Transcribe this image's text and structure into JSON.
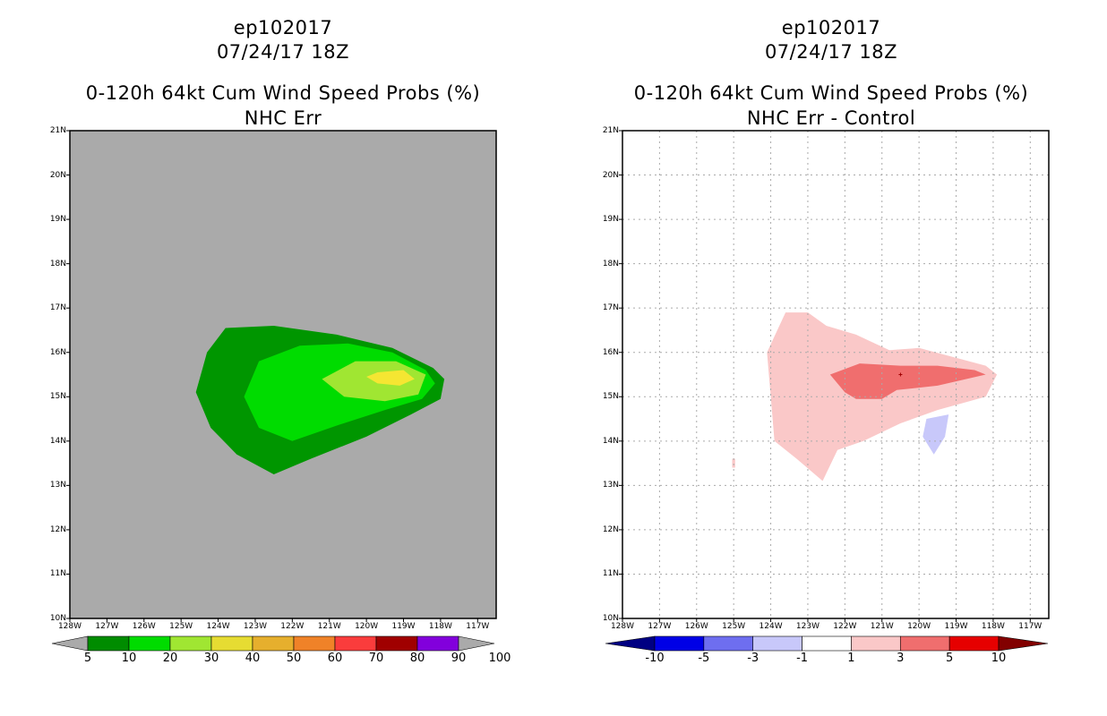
{
  "chart_data": [
    {
      "type": "filled-contour-map",
      "storm_id": "ep102017",
      "datetime": "07/24/17 18Z",
      "title": "0-120h 64kt Cum Wind Speed Probs (%)",
      "subtitle": "NHC Err",
      "lat_labels": [
        "21N",
        "20N",
        "19N",
        "18N",
        "17N",
        "16N",
        "15N",
        "14N",
        "13N",
        "12N",
        "11N",
        "10N"
      ],
      "lon_labels": [
        "128W",
        "127W",
        "126W",
        "125W",
        "124W",
        "123W",
        "122W",
        "121W",
        "120W",
        "119W",
        "118W",
        "117W"
      ],
      "xlim": [
        -128,
        -116.5
      ],
      "ylim": [
        10,
        21
      ],
      "background": "#aaaaaa",
      "colorbar": {
        "levels": [
          "5",
          "10",
          "20",
          "30",
          "40",
          "50",
          "60",
          "70",
          "80",
          "90",
          "100"
        ],
        "colors": [
          "#008c00",
          "#00dc00",
          "#a0e632",
          "#e6dc32",
          "#e6af2d",
          "#f08228",
          "#fa3c3c",
          "#a00000",
          "#8200dc"
        ],
        "end_color": "#aaaaaa"
      },
      "contours": [
        {
          "level": "5-10",
          "color": "#009600",
          "points": [
            [
              -124.3,
              16.0
            ],
            [
              -123.8,
              16.55
            ],
            [
              -122.5,
              16.6
            ],
            [
              -120.8,
              16.4
            ],
            [
              -119.3,
              16.1
            ],
            [
              -118.2,
              15.65
            ],
            [
              -117.9,
              15.4
            ],
            [
              -118.0,
              14.95
            ],
            [
              -118.8,
              14.6
            ],
            [
              -120.0,
              14.1
            ],
            [
              -121.5,
              13.6
            ],
            [
              -122.5,
              13.25
            ],
            [
              -123.5,
              13.7
            ],
            [
              -124.2,
              14.3
            ],
            [
              -124.6,
              15.1
            ],
            [
              -124.4,
              15.7
            ]
          ]
        },
        {
          "level": "10-20",
          "color": "#00dc00",
          "points": [
            [
              -122.9,
              15.8
            ],
            [
              -121.8,
              16.15
            ],
            [
              -120.5,
              16.2
            ],
            [
              -119.3,
              16.0
            ],
            [
              -118.4,
              15.6
            ],
            [
              -118.15,
              15.3
            ],
            [
              -118.5,
              14.95
            ],
            [
              -119.5,
              14.7
            ],
            [
              -120.8,
              14.35
            ],
            [
              -122.0,
              14.0
            ],
            [
              -122.9,
              14.3
            ],
            [
              -123.3,
              15.0
            ]
          ]
        },
        {
          "level": "20-30",
          "color": "#a0e632",
          "points": [
            [
              -121.2,
              15.4
            ],
            [
              -120.3,
              15.8
            ],
            [
              -119.2,
              15.8
            ],
            [
              -118.4,
              15.5
            ],
            [
              -118.6,
              15.05
            ],
            [
              -119.5,
              14.9
            ],
            [
              -120.6,
              15.0
            ]
          ]
        },
        {
          "level": "30-40",
          "color": "#f5e632",
          "points": [
            [
              -119.7,
              15.55
            ],
            [
              -119.0,
              15.6
            ],
            [
              -118.7,
              15.4
            ],
            [
              -119.1,
              15.25
            ],
            [
              -119.7,
              15.3
            ],
            [
              -120.0,
              15.45
            ]
          ]
        }
      ]
    },
    {
      "type": "filled-contour-map",
      "storm_id": "ep102017",
      "datetime": "07/24/17 18Z",
      "title": "0-120h 64kt Cum Wind Speed Probs (%)",
      "subtitle": "NHC Err - Control",
      "lat_labels": [
        "21N",
        "20N",
        "19N",
        "18N",
        "17N",
        "16N",
        "15N",
        "14N",
        "13N",
        "12N",
        "11N",
        "10N"
      ],
      "lon_labels": [
        "128W",
        "127W",
        "126W",
        "125W",
        "124W",
        "123W",
        "122W",
        "121W",
        "120W",
        "119W",
        "118W",
        "117W"
      ],
      "xlim": [
        -128,
        -116.5
      ],
      "ylim": [
        10,
        21
      ],
      "background": "#ffffff",
      "grid": true,
      "colorbar": {
        "levels": [
          "-10",
          "-5",
          "-3",
          "-1",
          "1",
          "3",
          "5",
          "10"
        ],
        "colors": [
          "#0000e6",
          "#6e6ef0",
          "#c8c8fa",
          "#ffffff",
          "#fac8c8",
          "#f06e6e",
          "#e60000"
        ],
        "start_color": "#000082",
        "end_color": "#820000"
      },
      "contours": [
        {
          "level": "1-3",
          "color": "#fac8c8",
          "points": [
            [
              -124.1,
              16.0
            ],
            [
              -123.6,
              16.9
            ],
            [
              -123.0,
              16.9
            ],
            [
              -122.5,
              16.6
            ],
            [
              -121.7,
              16.4
            ],
            [
              -120.8,
              16.05
            ],
            [
              -120.0,
              16.1
            ],
            [
              -118.2,
              15.7
            ],
            [
              -117.9,
              15.5
            ],
            [
              -118.2,
              15.0
            ],
            [
              -119.5,
              14.7
            ],
            [
              -120.5,
              14.4
            ],
            [
              -121.5,
              14.0
            ],
            [
              -122.2,
              13.8
            ],
            [
              -122.6,
              13.1
            ],
            [
              -123.3,
              13.6
            ],
            [
              -123.9,
              14.0
            ],
            [
              -124.0,
              15.0
            ]
          ]
        },
        {
          "level": "3-5",
          "color": "#f06e6e",
          "points": [
            [
              -122.4,
              15.5
            ],
            [
              -121.6,
              15.75
            ],
            [
              -120.5,
              15.7
            ],
            [
              -119.5,
              15.7
            ],
            [
              -118.5,
              15.6
            ],
            [
              -118.2,
              15.5
            ],
            [
              -119.5,
              15.25
            ],
            [
              -120.6,
              15.15
            ],
            [
              -121.0,
              14.95
            ],
            [
              -121.7,
              14.95
            ],
            [
              -122.0,
              15.1
            ]
          ]
        },
        {
          "level": "-3 to -1",
          "color": "#c8c8fa",
          "points": [
            [
              -119.8,
              14.5
            ],
            [
              -119.2,
              14.6
            ],
            [
              -119.3,
              14.1
            ],
            [
              -119.6,
              13.7
            ],
            [
              -119.9,
              14.1
            ]
          ]
        },
        {
          "level": "1-3",
          "color": "#fac8c8",
          "points": [
            [
              -125.04,
              13.6
            ],
            [
              -124.96,
              13.6
            ],
            [
              -124.96,
              13.4
            ],
            [
              -125.04,
              13.4
            ]
          ]
        }
      ]
    }
  ]
}
